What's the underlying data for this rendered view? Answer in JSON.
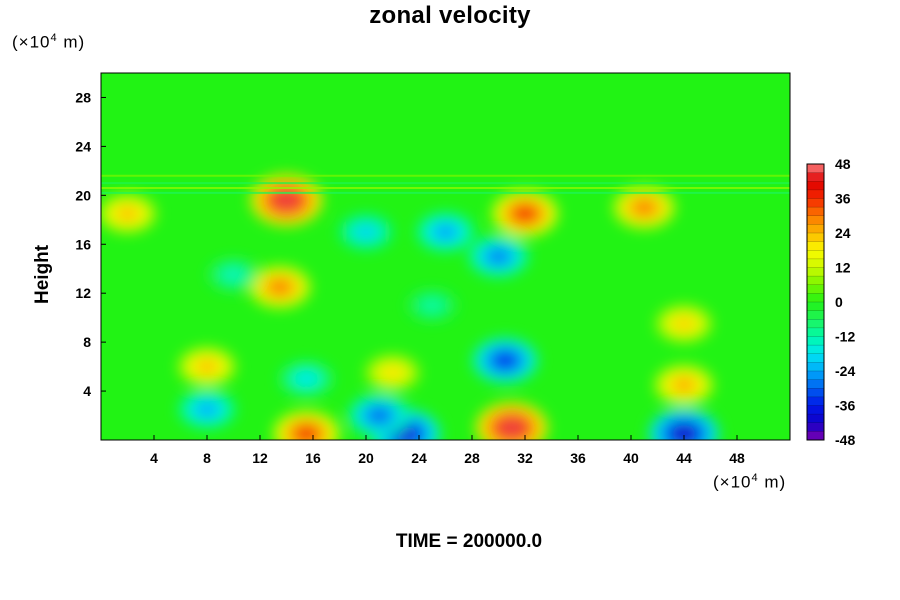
{
  "chart_data": {
    "type": "heatmap",
    "title": "zonal velocity",
    "xlabel": "",
    "ylabel": "Height",
    "x_unit": {
      "prefix": "(×10",
      "exp": "4",
      "suffix": " m)"
    },
    "y_unit": {
      "prefix": "(×10",
      "exp": "4",
      "suffix": " m)"
    },
    "xlim": [
      0,
      52
    ],
    "ylim": [
      0,
      30
    ],
    "x_ticks": [
      "4",
      "8",
      "12",
      "16",
      "20",
      "24",
      "28",
      "32",
      "36",
      "40",
      "44",
      "48"
    ],
    "y_ticks": [
      "4",
      "8",
      "12",
      "16",
      "20",
      "24",
      "28"
    ],
    "colorbar": {
      "range": [
        -48,
        48
      ],
      "ticks": [
        "48",
        "36",
        "24",
        "12",
        "0",
        "-12",
        "-24",
        "-36",
        "-48"
      ]
    },
    "footer": "TIME = 200000.0",
    "features": [
      {
        "x": 8,
        "y": 6,
        "value": 24
      },
      {
        "x": 8,
        "y": 2.5,
        "value": -24
      },
      {
        "x": 15.5,
        "y": 0.5,
        "value": 36
      },
      {
        "x": 15.5,
        "y": 5,
        "value": -18
      },
      {
        "x": 14,
        "y": 19.6,
        "value": 45
      },
      {
        "x": 13.5,
        "y": 12.5,
        "value": 30
      },
      {
        "x": 23,
        "y": 0.5,
        "value": -40
      },
      {
        "x": 21,
        "y": 2,
        "value": -30
      },
      {
        "x": 31,
        "y": 1,
        "value": 45
      },
      {
        "x": 30.5,
        "y": 6.5,
        "value": -35
      },
      {
        "x": 30,
        "y": 15,
        "value": -28
      },
      {
        "x": 44,
        "y": 0.5,
        "value": -42
      },
      {
        "x": 44,
        "y": 4.5,
        "value": 26
      },
      {
        "x": 44,
        "y": 9.5,
        "value": 22
      },
      {
        "x": 32,
        "y": 18.5,
        "value": 36
      },
      {
        "x": 41,
        "y": 19,
        "value": 30
      },
      {
        "x": 20,
        "y": 17,
        "value": -20
      },
      {
        "x": 26,
        "y": 17,
        "value": -25
      },
      {
        "x": 2,
        "y": 18.5,
        "value": 24
      },
      {
        "x": 22,
        "y": 5.5,
        "value": 20
      },
      {
        "x": 10,
        "y": 13.5,
        "value": -14
      },
      {
        "x": 25,
        "y": 11,
        "value": -12
      }
    ]
  }
}
